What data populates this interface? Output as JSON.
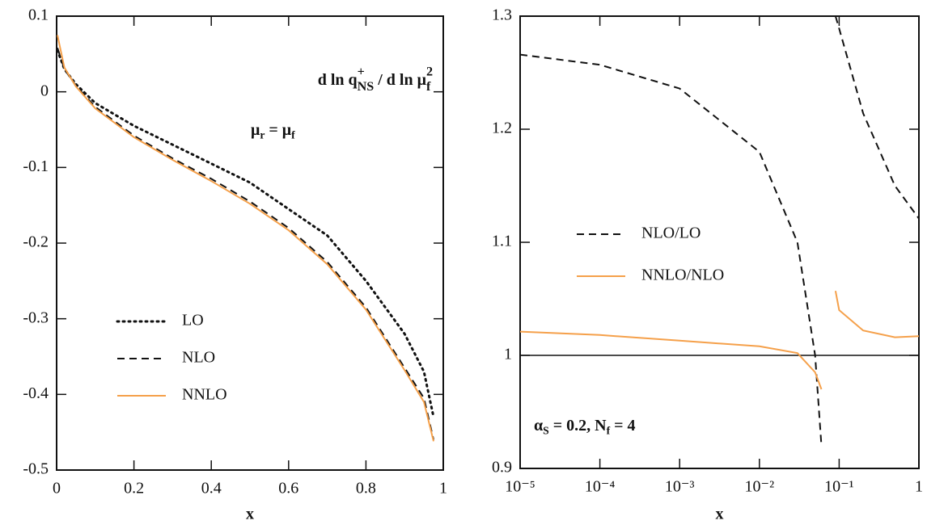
{
  "chart_data": [
    {
      "type": "line",
      "xlabel": "x",
      "x": [
        0.002,
        0.02,
        0.05,
        0.1,
        0.2,
        0.3,
        0.4,
        0.5,
        0.6,
        0.7,
        0.8,
        0.9,
        0.95,
        0.975
      ],
      "series": [
        {
          "name": "LO",
          "color": "#111111",
          "dash": "dotted",
          "values": [
            0.055,
            0.03,
            0.01,
            -0.015,
            -0.045,
            -0.07,
            -0.095,
            -0.12,
            -0.155,
            -0.19,
            -0.25,
            -0.32,
            -0.37,
            -0.43
          ]
        },
        {
          "name": "NLO",
          "color": "#111111",
          "dash": "dashed",
          "values": [
            0.058,
            0.03,
            0.008,
            -0.02,
            -0.058,
            -0.088,
            -0.115,
            -0.145,
            -0.18,
            -0.225,
            -0.285,
            -0.365,
            -0.405,
            -0.46
          ]
        },
        {
          "name": "NNLO",
          "color": "#f5a04a",
          "dash": "solid",
          "values": [
            0.075,
            0.032,
            0.007,
            -0.022,
            -0.06,
            -0.09,
            -0.118,
            -0.148,
            -0.183,
            -0.228,
            -0.288,
            -0.368,
            -0.41,
            -0.462
          ]
        }
      ],
      "xlim": [
        0,
        1
      ],
      "xticks": [
        0,
        0.2,
        0.4,
        0.6,
        0.8,
        1
      ],
      "ylim": [
        -0.5,
        0.1
      ],
      "yticks": [
        0.1,
        0,
        -0.1,
        -0.2,
        -0.3,
        -0.4,
        -0.5
      ],
      "legend": "lower left",
      "annotations": [
        {
          "parts": [
            {
              "text": "d ln q"
            },
            {
              "sup": "+"
            },
            {
              "sub": "NS"
            },
            {
              "text": " / d ln μ"
            },
            {
              "sup": "2"
            },
            {
              "sub": "f"
            }
          ]
        },
        {
          "parts": [
            {
              "text": "μ"
            },
            {
              "sub": "r"
            },
            {
              "text": " = μ"
            },
            {
              "sub": "f"
            }
          ]
        }
      ]
    },
    {
      "type": "line",
      "xlabel": "x",
      "xscale": "log",
      "x": [
        1e-05,
        0.0001,
        0.001,
        0.01,
        0.03,
        0.05,
        0.06,
        0.07,
        0.09,
        0.1,
        0.2,
        0.5,
        1
      ],
      "series": [
        {
          "name": "NLO/LO",
          "color": "#111111",
          "dash": "dashed",
          "values": [
            1.266,
            1.257,
            1.236,
            1.18,
            1.1,
            1.0,
            0.92,
            null,
            1.3,
            1.289,
            1.214,
            1.15,
            1.121
          ]
        },
        {
          "name": "NNLO/NLO",
          "color": "#f5a04a",
          "dash": "solid",
          "values": [
            1.021,
            1.018,
            1.013,
            1.008,
            1.002,
            0.985,
            0.97,
            null,
            1.057,
            1.04,
            1.022,
            1.016,
            1.017
          ]
        }
      ],
      "hline": 1,
      "xlim": [
        1e-05,
        1
      ],
      "xticks": [
        {
          "value": 1e-05,
          "label": "10⁻⁵"
        },
        {
          "value": 0.0001,
          "label": "10⁻⁴"
        },
        {
          "value": 0.001,
          "label": "10⁻³"
        },
        {
          "value": 0.01,
          "label": "10⁻²"
        },
        {
          "value": 0.1,
          "label": "10⁻¹"
        },
        1
      ],
      "ylim": [
        0.9,
        1.3
      ],
      "yticks": [
        1.3,
        1.2,
        1.1,
        1,
        0.9
      ],
      "legend": "center left",
      "annotations": [
        {
          "parts": [
            {
              "text": "α"
            },
            {
              "sub": "S"
            },
            {
              "text": " = 0.2, N"
            },
            {
              "sub": "f"
            },
            {
              "text": " = 4"
            }
          ]
        }
      ]
    }
  ]
}
